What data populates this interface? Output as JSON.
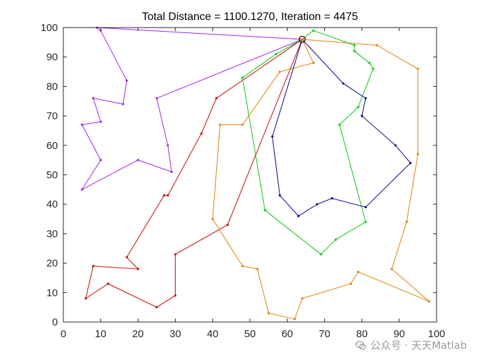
{
  "chart_data": {
    "type": "line",
    "title": "Total Distance = 1100.1270, Iteration = 4475",
    "xlim": [
      0,
      100
    ],
    "ylim": [
      0,
      100
    ],
    "x_ticks": [
      0,
      10,
      20,
      30,
      40,
      50,
      60,
      70,
      80,
      90,
      100
    ],
    "y_ticks": [
      0,
      10,
      20,
      30,
      40,
      50,
      60,
      70,
      80,
      90,
      100
    ],
    "grid": false,
    "depot": {
      "x": 64,
      "y": 96
    },
    "series": [
      {
        "color": "#a020f0",
        "x": [
          64,
          9,
          10,
          17,
          16,
          8,
          10,
          5,
          10,
          5,
          20,
          29,
          28,
          25,
          64
        ],
        "y": [
          96,
          100,
          99,
          82,
          74,
          76,
          68,
          67,
          55,
          45,
          55,
          51,
          60,
          76,
          96
        ]
      },
      {
        "color": "#cc0000",
        "x": [
          64,
          41,
          37,
          28,
          27,
          17,
          20,
          8,
          6,
          12,
          25,
          30,
          30,
          44,
          64
        ],
        "y": [
          96,
          76,
          64,
          43,
          43,
          22,
          18,
          19,
          8,
          13,
          5,
          9,
          23,
          33,
          96
        ]
      },
      {
        "color": "#e08000",
        "x": [
          64,
          67,
          58,
          48,
          42,
          40,
          48,
          52,
          55,
          62,
          64,
          77,
          79,
          98,
          88,
          92,
          95,
          95,
          84,
          64
        ],
        "y": [
          96,
          88,
          85,
          67,
          67,
          35,
          19,
          18,
          3,
          1,
          8,
          13,
          17,
          7,
          18,
          34,
          57,
          86,
          94,
          96
        ]
      },
      {
        "color": "#00cc00",
        "x": [
          64,
          67,
          78,
          78,
          82,
          83,
          79,
          74,
          81,
          73,
          69,
          54,
          48,
          57,
          64
        ],
        "y": [
          96,
          99,
          94,
          92,
          88,
          86,
          73,
          67,
          34,
          28,
          23,
          38,
          83,
          91,
          96
        ]
      },
      {
        "color": "#000099",
        "x": [
          64,
          75,
          81,
          80,
          89,
          93,
          81,
          72,
          68,
          63,
          58,
          56,
          64
        ],
        "y": [
          96,
          81,
          76,
          70,
          60,
          54,
          39,
          42,
          40,
          36,
          43,
          63,
          96
        ]
      }
    ]
  },
  "watermark": {
    "text": "公众号 · 天天Matlab",
    "icon": "wechat-icon"
  }
}
